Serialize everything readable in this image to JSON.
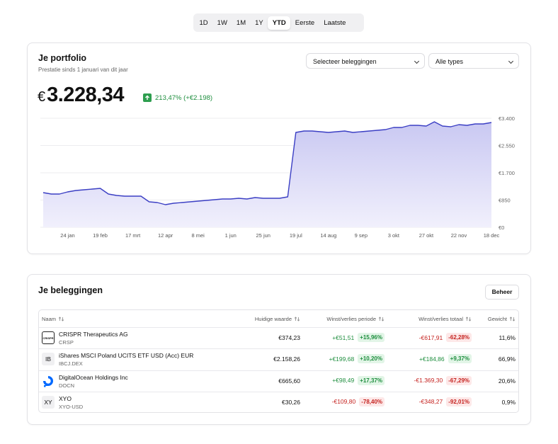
{
  "tabs": [
    "1D",
    "1W",
    "1M",
    "1Y",
    "YTD",
    "Eerste",
    "Laatste"
  ],
  "active_tab": 4,
  "portfolio": {
    "title": "Je portfolio",
    "subtitle": "Prestatie sinds 1 januari van dit jaar",
    "filters": [
      "Selecteer beleggingen",
      "Alle types"
    ],
    "currency": "€",
    "value": "3.228,34",
    "change": "213,47% (+€2.198)"
  },
  "chart_data": {
    "type": "line",
    "categories": [
      null,
      null,
      null,
      "24 jan",
      null,
      null,
      null,
      "19 feb",
      null,
      null,
      null,
      "17 mrt",
      null,
      null,
      null,
      "12 apr",
      null,
      null,
      null,
      "8 mei",
      null,
      null,
      null,
      "1 jun",
      null,
      null,
      null,
      "25 jun",
      null,
      null,
      null,
      "19 jul",
      null,
      null,
      null,
      "14 aug",
      null,
      null,
      null,
      "9 sep",
      null,
      null,
      null,
      "3 okt",
      null,
      null,
      null,
      "27 okt",
      null,
      null,
      null,
      "22 nov",
      null,
      null,
      null,
      "18 dec"
    ],
    "values": [
      1082,
      1038,
      1038,
      1104,
      1148,
      1170,
      1192,
      1214,
      1038,
      994,
      971,
      971,
      971,
      795,
      773,
      707,
      751,
      773,
      795,
      817,
      839,
      861,
      883,
      883,
      905,
      883,
      927,
      905,
      905,
      905,
      949,
      2959,
      3003,
      3003,
      2981,
      2959,
      2981,
      3003,
      2959,
      2981,
      3003,
      3025,
      3047,
      3113,
      3113,
      3180,
      3180,
      3158,
      3290,
      3158,
      3135,
      3202,
      3180,
      3224,
      3224,
      3268
    ],
    "color": "#3b3fc4",
    "ylim": [
      0,
      3400
    ],
    "yticks": [
      {
        "value": 0,
        "label": "€0"
      },
      {
        "value": 850,
        "label": "€850"
      },
      {
        "value": 1700,
        "label": "€1.700"
      },
      {
        "value": 2550,
        "label": "€2.550"
      },
      {
        "value": 3400,
        "label": "€3.400"
      }
    ],
    "grid": true
  },
  "holdings": {
    "title": "Je beleggingen",
    "button": "Beheer",
    "columns": [
      "Naam",
      "Huidige waarde",
      "Winst/verlies periode",
      "Winst/verlies totaal",
      "Gewicht"
    ],
    "rows": [
      {
        "icon": "CRISPR",
        "name": "CRISPR Therapeutics AG",
        "ticker": "CRSP",
        "value": "€374,23",
        "period": "+€51,51",
        "period_pct": "+15,96%",
        "total": "-€617,91",
        "total_pct": "-62,28%",
        "weight": "11,6%"
      },
      {
        "icon": "IB",
        "name": "iShares MSCI Poland UCITS ETF USD (Acc) EUR",
        "ticker": "IBCJ.DEX",
        "value": "€2.158,26",
        "period": "+€199,68",
        "period_pct": "+10,20%",
        "total": "+€184,86",
        "total_pct": "+9,37%",
        "weight": "66,9%"
      },
      {
        "name": "DigitalOcean Holdings Inc",
        "ticker": "DOCN",
        "value": "€665,60",
        "period": "+€98,49",
        "period_pct": "+17,37%",
        "total": "-€1.369,30",
        "total_pct": "-67,29%",
        "weight": "20,6%"
      },
      {
        "icon": "XY",
        "name": "XYO",
        "ticker": "XYO-USD",
        "value": "€30,26",
        "period": "-€109,80",
        "period_pct": "-78,40%",
        "total": "-€348,27",
        "total_pct": "-92,01%",
        "weight": "0,9%"
      }
    ]
  }
}
